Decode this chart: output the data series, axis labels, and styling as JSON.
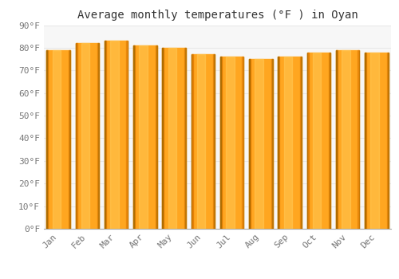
{
  "title": "Average monthly temperatures (°F ) in Oyan",
  "months": [
    "Jan",
    "Feb",
    "Mar",
    "Apr",
    "May",
    "Jun",
    "Jul",
    "Aug",
    "Sep",
    "Oct",
    "Nov",
    "Dec"
  ],
  "values": [
    79,
    82,
    83,
    81,
    80,
    77,
    76,
    75,
    76,
    78,
    79,
    78
  ],
  "bar_color_main": "#FFA620",
  "bar_color_light": "#FFD060",
  "bar_color_dark": "#E07800",
  "bar_color_edge": "#C06000",
  "ylim": [
    0,
    90
  ],
  "yticks": [
    0,
    10,
    20,
    30,
    40,
    50,
    60,
    70,
    80,
    90
  ],
  "ytick_labels": [
    "0°F",
    "10°F",
    "20°F",
    "30°F",
    "40°F",
    "50°F",
    "60°F",
    "70°F",
    "80°F",
    "90°F"
  ],
  "bg_color": "#ffffff",
  "plot_bg_color": "#f7f7f7",
  "grid_color": "#e8e8e8",
  "title_fontsize": 10,
  "tick_fontsize": 8,
  "bar_width": 0.82
}
